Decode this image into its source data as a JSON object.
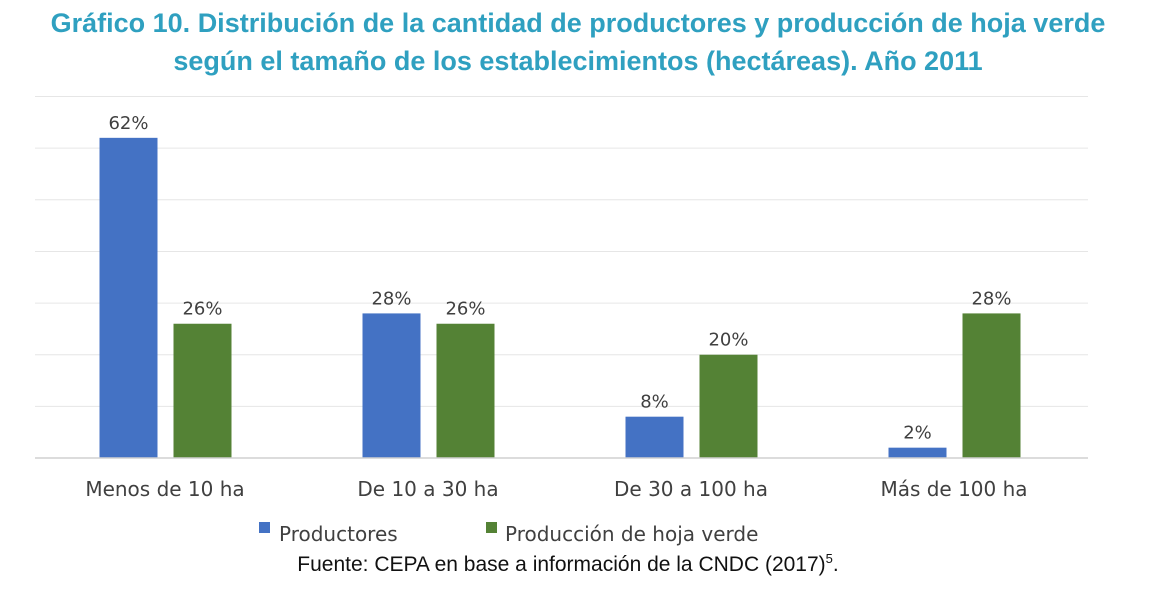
{
  "title_line1": "Gráfico 10. Distribución de la cantidad de productores y producción de hoja verde",
  "title_line2": "según el tamaño de los establecimientos (hectáreas). Año 2011",
  "source": {
    "text": "Fuente: CEPA en base a información de la CNDC (2017)",
    "footnote": "5",
    "end": "."
  },
  "colors": {
    "productores": "#4472c4",
    "produccion": "#548235",
    "title": "#2fa0c0"
  },
  "chart_data": {
    "type": "bar",
    "categories": [
      "Menos de 10 ha",
      "De 10 a 30 ha",
      "De 30 a 100 ha",
      "Más de 100 ha"
    ],
    "series": [
      {
        "name": "Productores",
        "values": [
          62,
          28,
          8,
          2
        ],
        "labels": [
          "62%",
          "28%",
          "8%",
          "2%"
        ]
      },
      {
        "name": "Producción de hoja verde",
        "values": [
          26,
          26,
          20,
          28
        ],
        "labels": [
          "26%",
          "26%",
          "20%",
          "28%"
        ]
      }
    ],
    "unit": "%",
    "ylim": [
      0,
      70
    ],
    "grid": true,
    "legend": "bottom"
  }
}
